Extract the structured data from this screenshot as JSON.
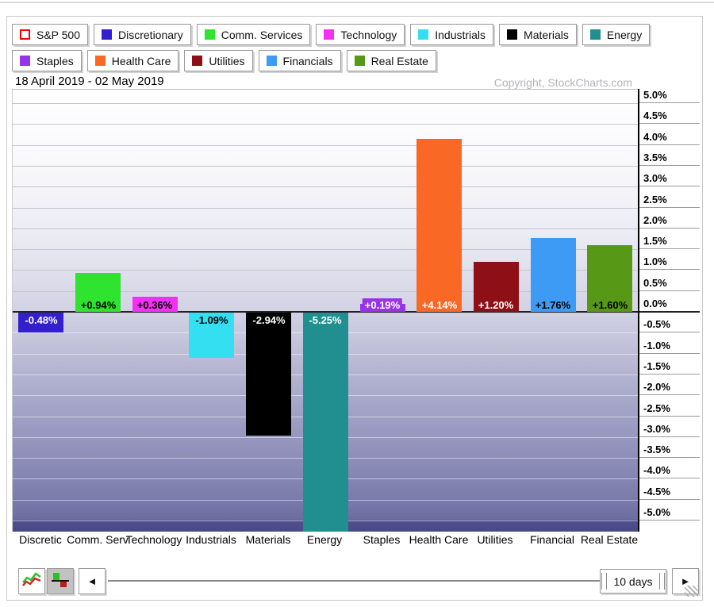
{
  "header": {
    "accent_note": ""
  },
  "legend": {
    "rows": [
      [
        {
          "label": "S&P 500",
          "color": "#ffffff",
          "border": "#ff0000",
          "filled": false
        },
        {
          "label": "Discretionary",
          "color": "#3320cc",
          "filled": true
        },
        {
          "label": "Comm. Services",
          "color": "#2ee42e",
          "filled": true
        },
        {
          "label": "Technology",
          "color": "#f530f5",
          "filled": true
        },
        {
          "label": "Industrials",
          "color": "#35dff2",
          "filled": true
        },
        {
          "label": "Materials",
          "color": "#000000",
          "filled": true
        },
        {
          "label": "Energy",
          "color": "#218f8f",
          "filled": true
        }
      ],
      [
        {
          "label": "Staples",
          "color": "#9833e8",
          "filled": true
        },
        {
          "label": "Health Care",
          "color": "#fa6826",
          "filled": true
        },
        {
          "label": "Utilities",
          "color": "#8f0f17",
          "filled": true
        },
        {
          "label": "Financials",
          "color": "#3d9bf5",
          "filled": true
        },
        {
          "label": "Real Estate",
          "color": "#579916",
          "filled": true
        }
      ]
    ]
  },
  "chart_data": {
    "type": "bar",
    "title": "18 April 2019 - 02 May 2019",
    "copyright": "Copyright, StockCharts.com",
    "categories": [
      "Discretic",
      "Comm. Serv",
      "Technology",
      "Industrials",
      "Materials",
      "Energy",
      "Staples",
      "Health Care",
      "Utilities",
      "Financial",
      "Real Estate"
    ],
    "categories_full": [
      "Discretionary",
      "Comm. Services",
      "Technology",
      "Industrials",
      "Materials",
      "Energy",
      "Staples",
      "Health Care",
      "Utilities",
      "Financials",
      "Real Estate"
    ],
    "values": [
      -0.48,
      0.94,
      0.36,
      -1.09,
      -2.94,
      -5.25,
      0.19,
      4.14,
      1.2,
      1.76,
      1.6
    ],
    "value_labels": [
      "-0.48%",
      "+0.94%",
      "+0.36%",
      "-1.09%",
      "-2.94%",
      "-5.25%",
      "+0.19%",
      "+4.14%",
      "+1.20%",
      "+1.76%",
      "+1.60%"
    ],
    "bar_colors": [
      "#3320cc",
      "#2ee42e",
      "#f530f5",
      "#35dff2",
      "#000000",
      "#218f8f",
      "#9833e8",
      "#fa6826",
      "#8f0f17",
      "#3d9bf5",
      "#579916"
    ],
    "value_text_colors": [
      "#ffffff",
      "#000000",
      "#000000",
      "#000000",
      "#ffffff",
      "#ffffff",
      "#ffffff",
      "#ffffff",
      "#ffffff",
      "#000000",
      "#000000"
    ],
    "xlabel": "",
    "ylabel": "",
    "ylim": [
      -5.3,
      5.3
    ],
    "ytick_step": 0.5,
    "yticks": [
      "5.0%",
      "4.5%",
      "4.0%",
      "3.5%",
      "3.0%",
      "2.5%",
      "2.0%",
      "1.5%",
      "1.0%",
      "0.5%",
      "0.0%",
      "-0.5%",
      "-1.0%",
      "-1.5%",
      "-2.0%",
      "-2.5%",
      "-3.0%",
      "-3.5%",
      "-4.0%",
      "-4.5%",
      "-5.0%"
    ],
    "grid": true,
    "legend_position": "top"
  },
  "toolbar": {
    "prev_label": "◄",
    "next_label": "►",
    "range_value": "10 days"
  }
}
